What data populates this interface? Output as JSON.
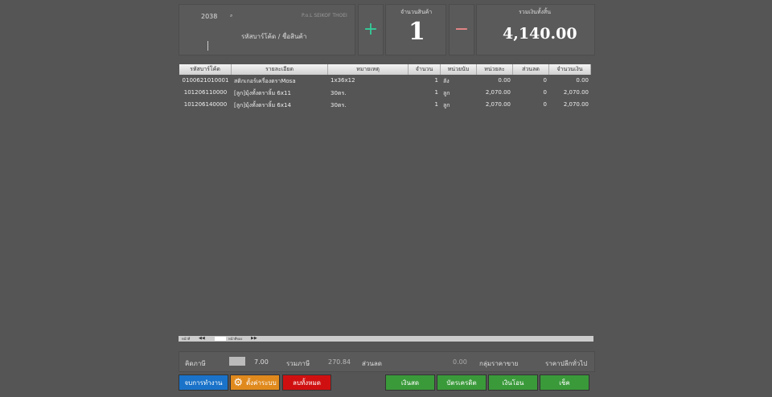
{
  "header": {
    "branch": "2038",
    "machine": "P.o.L SEIKOF THOEI",
    "search_label": "รหัสบาร์โค้ด / ชื่อสินค้า",
    "plus": "+",
    "qty_label": "จำนวนสินค้า",
    "qty": "1",
    "minus": "−",
    "total_label": "รวมเงินทั้งสิ้น",
    "total": "4,140.00"
  },
  "table": {
    "columns": [
      "รหัสบาร์โค้ด",
      "รายละเอียด",
      "หมายเหตุ",
      "จำนวน",
      "หน่วยนับ",
      "หน่วยละ",
      "ส่วนลด",
      "จำนวนเงิน"
    ],
    "rows": [
      [
        "0100621010001",
        "สติกเกอร์เครื่องตราMosa",
        "1x36x12",
        "1",
        "ลัง",
        "0.00",
        "0",
        "0.00"
      ],
      [
        "101206110000",
        "[ลูก]มุ้งทั้งตราลิ้ม 6x11",
        "30ตร.",
        "1",
        "ลูก",
        "2,070.00",
        "0",
        "2,070.00"
      ],
      [
        "101206140000",
        "[ลูก]มุ้งทั้งตราลิ้ม 6x14",
        "30ตร.",
        "1",
        "ลูก",
        "2,070.00",
        "0",
        "2,070.00"
      ]
    ]
  },
  "pager": {
    "page": "หน้าที่",
    "of": "หน้าที่ของ"
  },
  "footer": {
    "vat_label": "คิดภาษี",
    "vat_rate": "7.00",
    "vat_total_label": "รวมภาษี",
    "vat_total": "270.84",
    "discount_label": "ส่วนลด",
    "discount": "0.00",
    "price_group_label": "กลุ่มราคาขาย",
    "price_group": "ราคาปลีกทั่วไป"
  },
  "buttons": {
    "finish": "จบการทำงาน",
    "settings": "ตั้งค่าระบบ",
    "clear": "ลบทั้งหมด",
    "cash": "เงินสด",
    "credit": "บัตรเครดิต",
    "transfer": "เงินโอน",
    "cheque": "เช็ค"
  }
}
